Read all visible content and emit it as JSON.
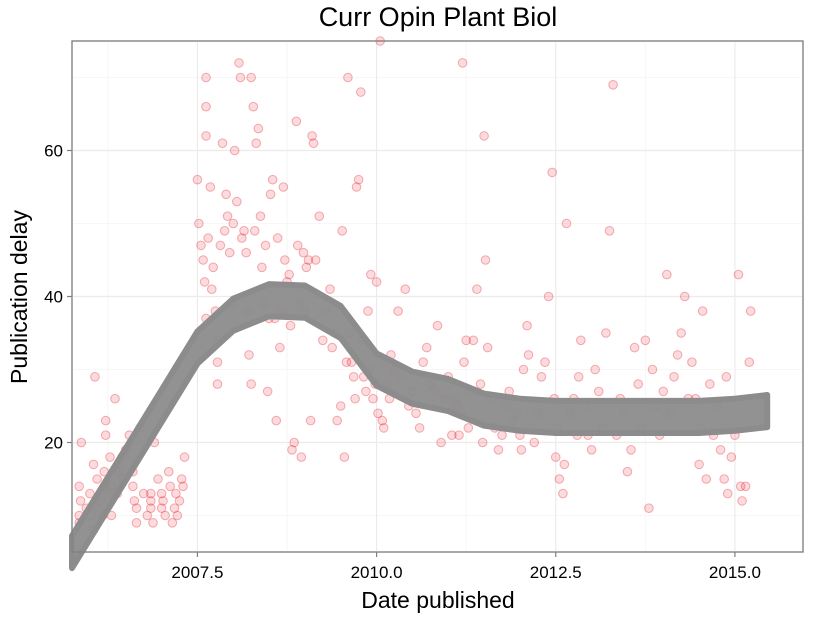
{
  "chart_data": {
    "type": "scatter",
    "title": "Curr Opin Plant Biol",
    "xlabel": "Date published",
    "ylabel": "Publication delay",
    "xlim": [
      2005.75,
      2015.95
    ],
    "ylim": [
      5,
      75
    ],
    "x_ticks": [
      2007.5,
      2010.0,
      2012.5,
      2015.0
    ],
    "x_tick_labels": [
      "2007.5",
      "2010.0",
      "2012.5",
      "2015.0"
    ],
    "y_ticks": [
      20,
      40,
      60
    ],
    "y_tick_labels": [
      "20",
      "40",
      "60"
    ],
    "grid": true,
    "point_color": "#e8202a",
    "smooth_color": "#8c8c8c",
    "series": [
      {
        "type": "scatter",
        "points": [
          [
            2005.85,
            9
          ],
          [
            2005.85,
            10
          ],
          [
            2005.87,
            12
          ],
          [
            2005.85,
            14
          ],
          [
            2005.88,
            20
          ],
          [
            2005.95,
            11
          ],
          [
            2006.0,
            13
          ],
          [
            2006.02,
            10
          ],
          [
            2006.05,
            8
          ],
          [
            2006.07,
            29
          ],
          [
            2006.1,
            15
          ],
          [
            2006.05,
            17
          ],
          [
            2006.12,
            11
          ],
          [
            2006.15,
            12
          ],
          [
            2006.18,
            10
          ],
          [
            2006.2,
            14
          ],
          [
            2006.2,
            16
          ],
          [
            2006.22,
            21
          ],
          [
            2006.22,
            23
          ],
          [
            2006.25,
            13
          ],
          [
            2006.28,
            18
          ],
          [
            2006.3,
            10
          ],
          [
            2006.3,
            14
          ],
          [
            2006.35,
            26
          ],
          [
            2006.38,
            13
          ],
          [
            2006.4,
            17
          ],
          [
            2006.42,
            16
          ],
          [
            2006.45,
            15
          ],
          [
            2006.45,
            18
          ],
          [
            2006.5,
            19
          ],
          [
            2006.55,
            21
          ],
          [
            2006.6,
            14
          ],
          [
            2006.6,
            16
          ],
          [
            2006.62,
            12
          ],
          [
            2006.65,
            11
          ],
          [
            2006.65,
            9
          ],
          [
            2006.7,
            22
          ],
          [
            2006.75,
            13
          ],
          [
            2006.8,
            10
          ],
          [
            2006.85,
            12
          ],
          [
            2006.85,
            11
          ],
          [
            2006.85,
            13
          ],
          [
            2006.88,
            9
          ],
          [
            2006.9,
            20
          ],
          [
            2006.95,
            15
          ],
          [
            2007.0,
            11
          ],
          [
            2007.0,
            13
          ],
          [
            2007.02,
            12
          ],
          [
            2007.05,
            10
          ],
          [
            2007.1,
            16
          ],
          [
            2007.12,
            14
          ],
          [
            2007.15,
            9
          ],
          [
            2007.18,
            11
          ],
          [
            2007.2,
            13
          ],
          [
            2007.22,
            10
          ],
          [
            2007.25,
            12
          ],
          [
            2007.28,
            15
          ],
          [
            2007.3,
            14
          ],
          [
            2007.32,
            18
          ],
          [
            2007.5,
            56
          ],
          [
            2007.52,
            50
          ],
          [
            2007.55,
            47
          ],
          [
            2007.58,
            45
          ],
          [
            2007.6,
            42
          ],
          [
            2007.62,
            37
          ],
          [
            2007.62,
            62
          ],
          [
            2007.62,
            66
          ],
          [
            2007.62,
            70
          ],
          [
            2007.65,
            48
          ],
          [
            2007.68,
            55
          ],
          [
            2007.7,
            41
          ],
          [
            2007.72,
            44
          ],
          [
            2007.75,
            38
          ],
          [
            2007.78,
            31
          ],
          [
            2007.78,
            28
          ],
          [
            2007.8,
            34
          ],
          [
            2007.82,
            47
          ],
          [
            2007.85,
            61
          ],
          [
            2007.88,
            49
          ],
          [
            2007.9,
            54
          ],
          [
            2007.92,
            51
          ],
          [
            2007.95,
            46
          ],
          [
            2007.98,
            39
          ],
          [
            2008.0,
            50
          ],
          [
            2008.02,
            60
          ],
          [
            2008.05,
            53
          ],
          [
            2008.08,
            72
          ],
          [
            2008.1,
            70
          ],
          [
            2008.12,
            48
          ],
          [
            2008.15,
            49
          ],
          [
            2008.18,
            46
          ],
          [
            2008.2,
            38
          ],
          [
            2008.22,
            32
          ],
          [
            2008.25,
            28
          ],
          [
            2008.25,
            70
          ],
          [
            2008.28,
            66
          ],
          [
            2008.3,
            49
          ],
          [
            2008.32,
            61
          ],
          [
            2008.35,
            63
          ],
          [
            2008.38,
            51
          ],
          [
            2008.4,
            44
          ],
          [
            2008.42,
            39
          ],
          [
            2008.45,
            47
          ],
          [
            2008.48,
            27
          ],
          [
            2008.5,
            37
          ],
          [
            2008.52,
            54
          ],
          [
            2008.55,
            56
          ],
          [
            2008.58,
            37
          ],
          [
            2008.6,
            23
          ],
          [
            2008.62,
            48
          ],
          [
            2008.65,
            33
          ],
          [
            2008.68,
            38
          ],
          [
            2008.7,
            55
          ],
          [
            2008.72,
            45
          ],
          [
            2008.75,
            42
          ],
          [
            2008.78,
            43
          ],
          [
            2008.8,
            36
          ],
          [
            2008.82,
            19
          ],
          [
            2008.85,
            20
          ],
          [
            2008.88,
            64
          ],
          [
            2008.9,
            47
          ],
          [
            2008.92,
            39
          ],
          [
            2008.95,
            18
          ],
          [
            2008.98,
            46
          ],
          [
            2009.0,
            38
          ],
          [
            2009.02,
            44
          ],
          [
            2009.05,
            45
          ],
          [
            2009.08,
            23
          ],
          [
            2009.1,
            62
          ],
          [
            2009.12,
            61
          ],
          [
            2009.15,
            45
          ],
          [
            2009.2,
            51
          ],
          [
            2009.25,
            34
          ],
          [
            2009.3,
            38
          ],
          [
            2009.35,
            41
          ],
          [
            2009.38,
            33
          ],
          [
            2009.42,
            35
          ],
          [
            2009.45,
            23
          ],
          [
            2009.5,
            25
          ],
          [
            2009.52,
            49
          ],
          [
            2009.55,
            18
          ],
          [
            2009.58,
            31
          ],
          [
            2009.6,
            70
          ],
          [
            2009.62,
            35
          ],
          [
            2009.65,
            31
          ],
          [
            2009.68,
            29
          ],
          [
            2009.7,
            26
          ],
          [
            2009.72,
            55
          ],
          [
            2009.75,
            56
          ],
          [
            2009.78,
            68
          ],
          [
            2009.8,
            34
          ],
          [
            2009.82,
            29
          ],
          [
            2009.85,
            27
          ],
          [
            2009.88,
            38
          ],
          [
            2009.9,
            30
          ],
          [
            2009.92,
            43
          ],
          [
            2009.95,
            26
          ],
          [
            2009.98,
            28
          ],
          [
            2010.0,
            42
          ],
          [
            2010.02,
            24
          ],
          [
            2010.05,
            75
          ],
          [
            2010.08,
            23
          ],
          [
            2010.1,
            22
          ],
          [
            2010.12,
            31
          ],
          [
            2010.15,
            28
          ],
          [
            2010.18,
            26
          ],
          [
            2010.2,
            32
          ],
          [
            2010.25,
            30
          ],
          [
            2010.3,
            38
          ],
          [
            2010.35,
            29
          ],
          [
            2010.4,
            41
          ],
          [
            2010.45,
            25
          ],
          [
            2010.5,
            27
          ],
          [
            2010.55,
            24
          ],
          [
            2010.6,
            22
          ],
          [
            2010.65,
            31
          ],
          [
            2010.7,
            33
          ],
          [
            2010.75,
            28
          ],
          [
            2010.8,
            27
          ],
          [
            2010.85,
            36
          ],
          [
            2010.9,
            20
          ],
          [
            2010.95,
            26
          ],
          [
            2011.0,
            29
          ],
          [
            2011.05,
            21
          ],
          [
            2011.1,
            26
          ],
          [
            2011.12,
            25
          ],
          [
            2011.15,
            21
          ],
          [
            2011.18,
            24
          ],
          [
            2011.2,
            72
          ],
          [
            2011.22,
            31
          ],
          [
            2011.25,
            34
          ],
          [
            2011.28,
            22
          ],
          [
            2011.3,
            27
          ],
          [
            2011.35,
            34
          ],
          [
            2011.4,
            41
          ],
          [
            2011.45,
            28
          ],
          [
            2011.48,
            20
          ],
          [
            2011.5,
            62
          ],
          [
            2011.52,
            45
          ],
          [
            2011.55,
            33
          ],
          [
            2011.6,
            26
          ],
          [
            2011.65,
            22
          ],
          [
            2011.7,
            19
          ],
          [
            2011.75,
            21
          ],
          [
            2011.8,
            25
          ],
          [
            2011.85,
            27
          ],
          [
            2011.9,
            23
          ],
          [
            2011.95,
            24
          ],
          [
            2012.0,
            21
          ],
          [
            2012.02,
            19
          ],
          [
            2012.05,
            30
          ],
          [
            2012.1,
            36
          ],
          [
            2012.12,
            32
          ],
          [
            2012.15,
            22
          ],
          [
            2012.2,
            20
          ],
          [
            2012.25,
            24
          ],
          [
            2012.3,
            29
          ],
          [
            2012.35,
            31
          ],
          [
            2012.4,
            40
          ],
          [
            2012.45,
            57
          ],
          [
            2012.48,
            26
          ],
          [
            2012.5,
            18
          ],
          [
            2012.52,
            22
          ],
          [
            2012.55,
            15
          ],
          [
            2012.6,
            13
          ],
          [
            2012.62,
            17
          ],
          [
            2012.65,
            50
          ],
          [
            2012.7,
            24
          ],
          [
            2012.75,
            26
          ],
          [
            2012.8,
            21
          ],
          [
            2012.82,
            29
          ],
          [
            2012.85,
            34
          ],
          [
            2012.9,
            25
          ],
          [
            2012.95,
            21
          ],
          [
            2013.0,
            19
          ],
          [
            2013.05,
            30
          ],
          [
            2013.1,
            27
          ],
          [
            2013.15,
            22
          ],
          [
            2013.2,
            35
          ],
          [
            2013.25,
            49
          ],
          [
            2013.3,
            69
          ],
          [
            2013.35,
            21
          ],
          [
            2013.4,
            26
          ],
          [
            2013.45,
            24
          ],
          [
            2013.5,
            16
          ],
          [
            2013.55,
            19
          ],
          [
            2013.6,
            33
          ],
          [
            2013.65,
            28
          ],
          [
            2013.7,
            22
          ],
          [
            2013.75,
            34
          ],
          [
            2013.8,
            11
          ],
          [
            2013.85,
            30
          ],
          [
            2013.9,
            25
          ],
          [
            2013.95,
            21
          ],
          [
            2014.0,
            27
          ],
          [
            2014.05,
            43
          ],
          [
            2014.1,
            24
          ],
          [
            2014.15,
            29
          ],
          [
            2014.2,
            32
          ],
          [
            2014.25,
            35
          ],
          [
            2014.3,
            40
          ],
          [
            2014.35,
            26
          ],
          [
            2014.4,
            31
          ],
          [
            2014.45,
            26
          ],
          [
            2014.5,
            17
          ],
          [
            2014.52,
            22
          ],
          [
            2014.55,
            38
          ],
          [
            2014.6,
            15
          ],
          [
            2014.65,
            28
          ],
          [
            2014.7,
            21
          ],
          [
            2014.75,
            25
          ],
          [
            2014.8,
            19
          ],
          [
            2014.85,
            15
          ],
          [
            2014.88,
            29
          ],
          [
            2014.9,
            13
          ],
          [
            2014.95,
            18
          ],
          [
            2015.0,
            21
          ],
          [
            2015.05,
            43
          ],
          [
            2015.08,
            14
          ],
          [
            2015.1,
            12
          ],
          [
            2015.15,
            14
          ],
          [
            2015.2,
            31
          ],
          [
            2015.22,
            38
          ]
        ]
      },
      {
        "type": "smooth",
        "points": [
          [
            2005.75,
            5
          ],
          [
            2006.0,
            9
          ],
          [
            2006.5,
            17
          ],
          [
            2007.0,
            25
          ],
          [
            2007.5,
            33
          ],
          [
            2008.0,
            37.5
          ],
          [
            2008.5,
            39.5
          ],
          [
            2009.0,
            39.3
          ],
          [
            2009.5,
            36.5
          ],
          [
            2010.0,
            30
          ],
          [
            2010.5,
            27.5
          ],
          [
            2011.0,
            26.5
          ],
          [
            2011.5,
            24.5
          ],
          [
            2012.0,
            23.8
          ],
          [
            2012.5,
            23.5
          ],
          [
            2013.0,
            23.5
          ],
          [
            2013.5,
            23.5
          ],
          [
            2014.0,
            23.5
          ],
          [
            2014.5,
            23.5
          ],
          [
            2015.0,
            23.8
          ],
          [
            2015.45,
            24.3
          ]
        ],
        "band": 2.2
      }
    ]
  }
}
